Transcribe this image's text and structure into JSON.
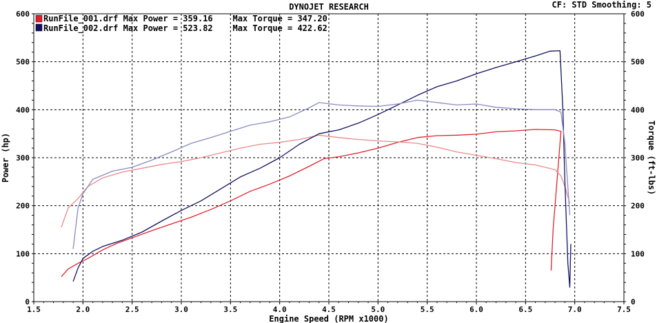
{
  "header": {
    "title": "DYNOJET RESEARCH",
    "status": "CF: STD  Smoothing: 5"
  },
  "legend": {
    "run1": "RunFile_001.drf Max Power = 359.16    Max Torque = 347.20",
    "run2": "RunFile_002.drf Max Power = 523.82    Max Torque = 422.62"
  },
  "colors": {
    "run1": "#e0202a",
    "run1_light": "#e88a8a",
    "run2": "#101060",
    "run2_light": "#8a88c0",
    "grid": "#000000"
  },
  "chart_data": {
    "type": "line",
    "title": "DYNOJET RESEARCH",
    "xlabel": "Engine Speed (RPM x1000)",
    "ylabel": "Power (hp)",
    "y2label": "Torque (ft-lbs)",
    "xlim": [
      1.5,
      7.5
    ],
    "ylim": [
      0,
      600
    ],
    "y2lim": [
      0,
      600
    ],
    "xticks": [
      "1.5",
      "2.0",
      "2.5",
      "3.0",
      "3.5",
      "4.0",
      "4.5",
      "5.0",
      "5.5",
      "6.0",
      "6.5",
      "7.0",
      "7.5"
    ],
    "yticks": [
      "0",
      "100",
      "200",
      "300",
      "400",
      "500",
      "600"
    ],
    "grid": true,
    "legend_position": "top-left",
    "series": [
      {
        "name": "RunFile_001.drf Power",
        "axis": "power",
        "color": "#e0202a",
        "x": [
          1.78,
          1.85,
          1.95,
          2.05,
          2.2,
          2.35,
          2.5,
          2.7,
          2.9,
          3.1,
          3.3,
          3.5,
          3.7,
          3.9,
          4.1,
          4.3,
          4.45,
          4.6,
          4.8,
          5.0,
          5.2,
          5.4,
          5.6,
          5.8,
          6.0,
          6.2,
          6.4,
          6.6,
          6.8,
          6.86,
          6.78,
          6.76
        ],
        "y": [
          52,
          68,
          80,
          90,
          108,
          122,
          133,
          148,
          162,
          176,
          192,
          210,
          230,
          245,
          262,
          282,
          298,
          302,
          310,
          320,
          332,
          342,
          346,
          347,
          349,
          354,
          356,
          359,
          358,
          355,
          150,
          65
        ]
      },
      {
        "name": "RunFile_001.drf Torque",
        "axis": "torque",
        "color": "#e88a8a",
        "x": [
          1.78,
          1.85,
          1.95,
          2.05,
          2.2,
          2.4,
          2.6,
          2.8,
          3.0,
          3.2,
          3.4,
          3.6,
          3.8,
          4.0,
          4.2,
          4.4,
          4.6,
          4.8,
          5.0,
          5.2,
          5.4,
          5.6,
          5.8,
          6.0,
          6.2,
          6.4,
          6.6,
          6.8,
          6.86,
          6.9,
          6.95
        ],
        "y": [
          155,
          195,
          215,
          240,
          258,
          270,
          278,
          286,
          292,
          300,
          310,
          320,
          328,
          332,
          338,
          347,
          342,
          338,
          335,
          333,
          330,
          322,
          312,
          305,
          298,
          290,
          285,
          275,
          262,
          240,
          205
        ]
      },
      {
        "name": "RunFile_002.drf Power",
        "axis": "power",
        "color": "#101060",
        "x": [
          1.9,
          1.95,
          2.0,
          2.1,
          2.2,
          2.4,
          2.6,
          2.8,
          3.0,
          3.2,
          3.4,
          3.6,
          3.8,
          4.0,
          4.2,
          4.4,
          4.6,
          4.8,
          5.0,
          5.2,
          5.4,
          5.6,
          5.8,
          6.0,
          6.2,
          6.4,
          6.6,
          6.75,
          6.85,
          6.88,
          6.9,
          6.93,
          6.95,
          6.96
        ],
        "y": [
          42,
          70,
          90,
          105,
          115,
          128,
          145,
          168,
          190,
          210,
          235,
          260,
          278,
          300,
          328,
          350,
          358,
          372,
          390,
          410,
          430,
          448,
          460,
          475,
          488,
          500,
          512,
          522,
          523,
          400,
          250,
          80,
          30,
          120
        ]
      },
      {
        "name": "RunFile_002.drf Torque",
        "axis": "torque",
        "color": "#8a88c0",
        "x": [
          1.9,
          1.95,
          2.0,
          2.1,
          2.3,
          2.5,
          2.7,
          2.9,
          3.1,
          3.3,
          3.5,
          3.7,
          3.9,
          4.1,
          4.3,
          4.4,
          4.6,
          4.8,
          5.0,
          5.2,
          5.4,
          5.6,
          5.8,
          6.0,
          6.2,
          6.4,
          6.6,
          6.8,
          6.86,
          6.9,
          6.95
        ],
        "y": [
          110,
          195,
          225,
          255,
          272,
          280,
          295,
          312,
          330,
          342,
          355,
          368,
          375,
          385,
          404,
          415,
          410,
          408,
          407,
          412,
          420,
          415,
          410,
          412,
          405,
          402,
          400,
          400,
          395,
          330,
          180
        ]
      }
    ]
  }
}
